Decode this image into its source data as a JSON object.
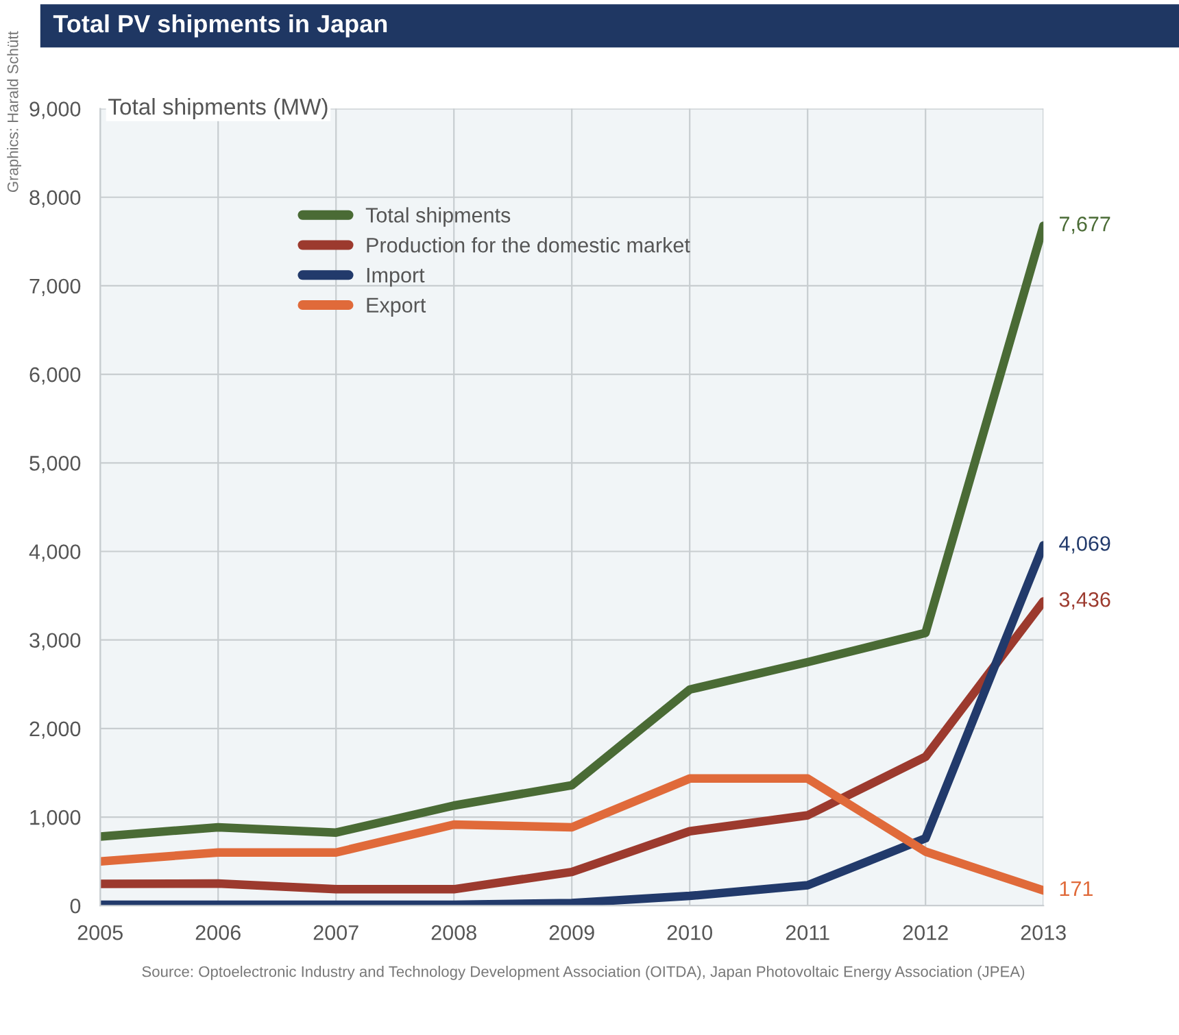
{
  "chart_data": {
    "type": "line",
    "title": "Total PV shipments in Japan",
    "ylabel": "Total shipments (MW)",
    "categories": [
      "2005",
      "2006",
      "2007",
      "2008",
      "2009",
      "2010",
      "2011",
      "2012",
      "2013"
    ],
    "series": [
      {
        "name": "Total shipments",
        "color": "#4a6b35",
        "values": [
          780,
          885,
          825,
          1130,
          1360,
          2440,
          2750,
          3080,
          7677
        ],
        "value_labels": [
          null,
          null,
          null,
          null,
          null,
          null,
          null,
          null,
          "7,677"
        ]
      },
      {
        "name": "Production for the domestic market",
        "color": "#9c3a2e",
        "values": [
          245,
          250,
          185,
          185,
          380,
          840,
          1020,
          1680,
          3436
        ],
        "value_labels": [
          null,
          null,
          null,
          null,
          null,
          null,
          null,
          null,
          "3,436"
        ]
      },
      {
        "name": "Import",
        "color": "#223a6b",
        "values": [
          10,
          10,
          10,
          10,
          30,
          110,
          230,
          760,
          4069
        ],
        "value_labels": [
          null,
          null,
          null,
          null,
          null,
          null,
          null,
          null,
          "4,069"
        ]
      },
      {
        "name": "Export",
        "color": "#e06a3a",
        "values": [
          500,
          600,
          600,
          915,
          885,
          1435,
          1435,
          610,
          171
        ],
        "value_labels": [
          null,
          null,
          null,
          null,
          null,
          null,
          null,
          null,
          "171"
        ]
      }
    ],
    "ylim": [
      0,
      9000
    ],
    "yticks": [
      0,
      {
        "value": 1000,
        "label": "1,000"
      },
      {
        "value": 2000,
        "label": "2,000"
      },
      {
        "value": 3000,
        "label": "3,000"
      },
      {
        "value": 4000,
        "label": "4,000"
      },
      {
        "value": 5000,
        "label": "5,000"
      },
      {
        "value": 6000,
        "label": "6,000"
      },
      {
        "value": 7000,
        "label": "7,000"
      },
      {
        "value": 8000,
        "label": "8,000"
      },
      {
        "value": 9000,
        "label": "9,000"
      }
    ],
    "grid": true,
    "legend": "top",
    "line_style": "solid",
    "annotations": [
      "Source: Optoelectronic Industry and Technology Development Association (OITDA), Japan Photovoltaic Energy Association (JPEA)",
      "Graphics: Harald Schütt"
    ]
  }
}
